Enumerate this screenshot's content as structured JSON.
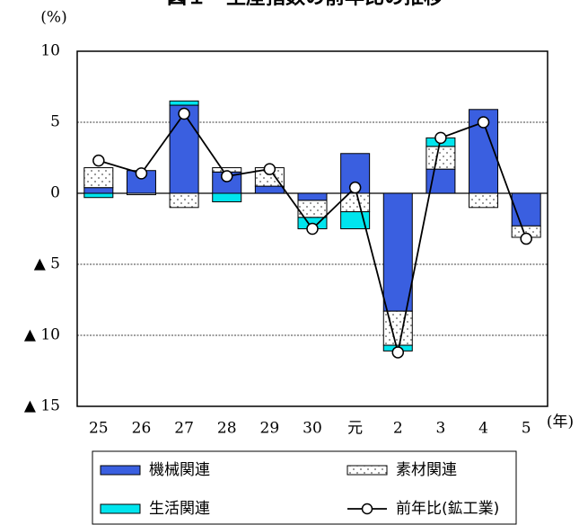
{
  "chart_data": {
    "type": "bar",
    "title": "図１　生産指数の前年比の推移",
    "y_unit": "(%)",
    "x_unit": "(年)",
    "categories": [
      "25",
      "26",
      "27",
      "28",
      "29",
      "30",
      "元",
      "2",
      "3",
      "4",
      "5"
    ],
    "series": [
      {
        "name": "機械関連",
        "color": "#3a5fe0",
        "values": [
          0.4,
          1.6,
          6.2,
          1.5,
          0.5,
          -0.5,
          2.8,
          -8.3,
          1.7,
          5.9,
          -2.3
        ]
      },
      {
        "name": "素材関連",
        "color": "#ffffff",
        "pattern": "dots",
        "values": [
          1.4,
          -0.1,
          -1.0,
          0.3,
          1.3,
          -1.2,
          -1.3,
          -2.4,
          1.6,
          -1.0,
          -0.8
        ]
      },
      {
        "name": "生活関連",
        "color": "#00e5ee",
        "values": [
          -0.3,
          0,
          0.3,
          -0.6,
          0,
          -0.8,
          -1.2,
          -0.4,
          0.6,
          0,
          0
        ]
      },
      {
        "name": "前年比(鉱工業)",
        "type": "line",
        "color": "#000000",
        "values": [
          2.3,
          1.4,
          5.6,
          1.2,
          1.7,
          -2.5,
          0.4,
          -11.2,
          3.9,
          5.0,
          -3.2
        ]
      }
    ],
    "ylim": [
      -15,
      10
    ],
    "yticks": [
      {
        "value": -15,
        "label": "▲ 15"
      },
      {
        "value": -10,
        "label": "▲ 10"
      },
      {
        "value": -5,
        "label": "▲ 5"
      },
      0,
      5,
      10
    ],
    "grid": true
  }
}
